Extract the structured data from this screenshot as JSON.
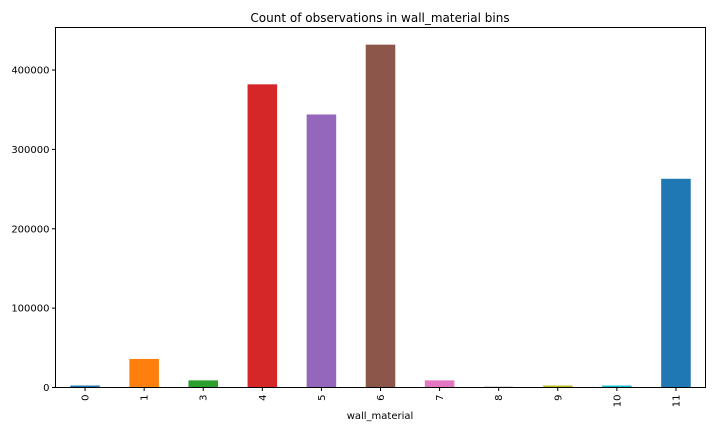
{
  "chart_data": {
    "type": "bar",
    "title": "Count of observations in wall_material bins",
    "xlabel": "wall_material",
    "ylabel": "",
    "categories": [
      "0",
      "1",
      "3",
      "4",
      "5",
      "6",
      "7",
      "8",
      "9",
      "10",
      "11"
    ],
    "values": [
      2500,
      36000,
      9000,
      382000,
      344000,
      432000,
      9000,
      1000,
      2500,
      2500,
      263000
    ],
    "colors": [
      "#1f77b4",
      "#ff7f0e",
      "#2ca02c",
      "#d62728",
      "#9467bd",
      "#8c564b",
      "#e377c2",
      "#7f7f7f",
      "#bcbd22",
      "#17becf",
      "#1f77b4"
    ],
    "yticks": [
      0,
      100000,
      200000,
      300000,
      400000
    ],
    "ylim": [
      0,
      453600
    ],
    "grid": false,
    "legend": "none"
  }
}
